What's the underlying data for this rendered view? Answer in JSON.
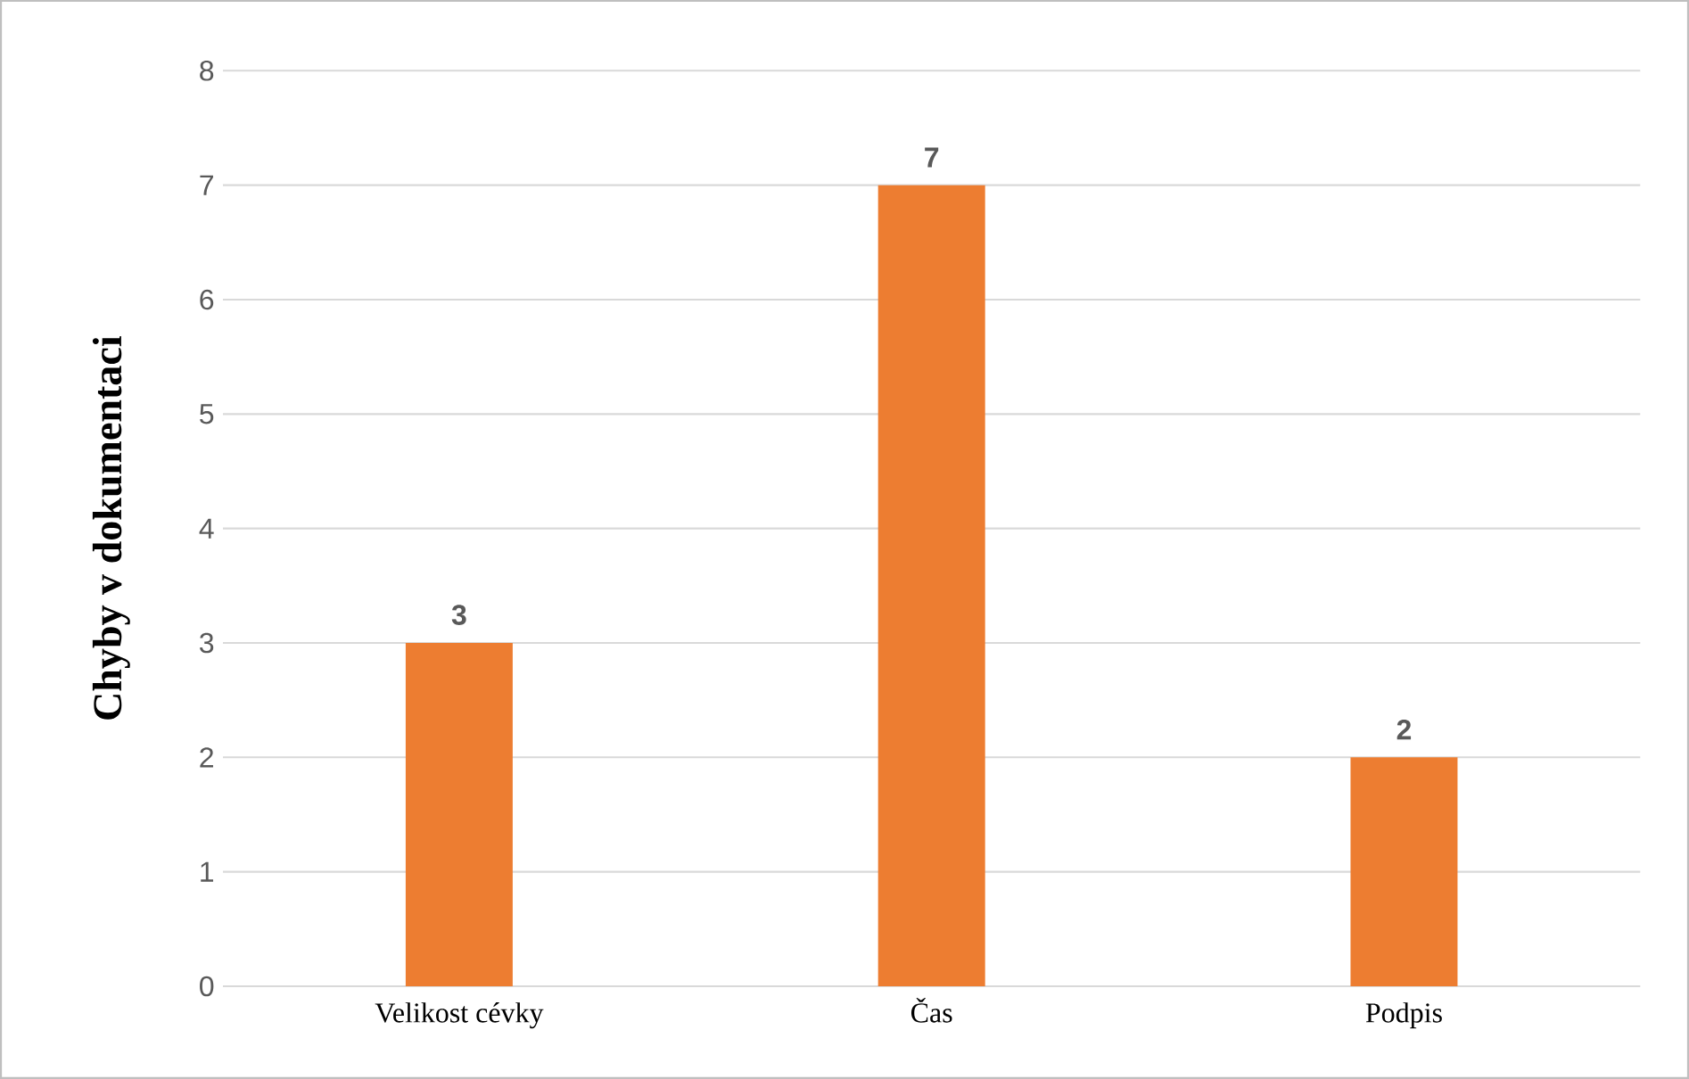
{
  "chart_data": {
    "type": "bar",
    "ylabel": "Chyby v dokumentaci",
    "categories": [
      "Velikost cévky",
      "Čas",
      "Podpis"
    ],
    "values": [
      3,
      7,
      2
    ],
    "color": "#ed7d31",
    "ylim": [
      0,
      8
    ],
    "yticks": [
      0,
      1,
      2,
      3,
      4,
      5,
      6,
      7,
      8
    ],
    "grid": "y",
    "data_labels": true
  }
}
